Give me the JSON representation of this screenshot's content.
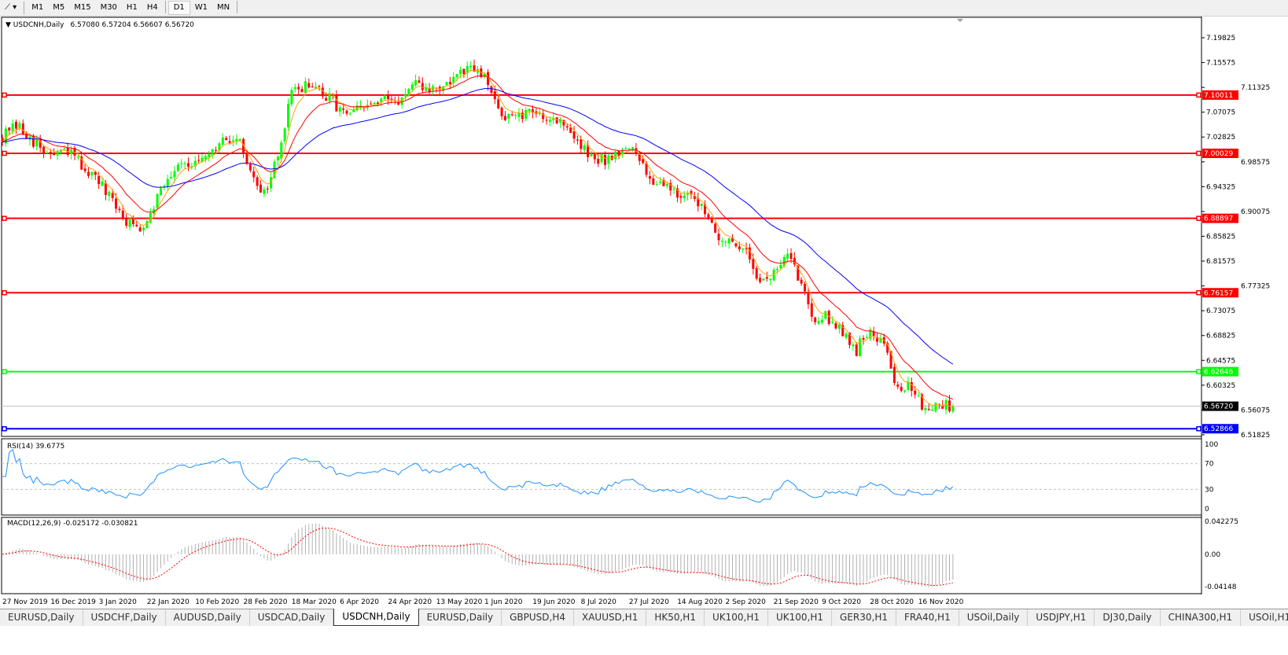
{
  "toolbar": {
    "tool_icon": "line-tool-icon",
    "timeframes": [
      "M1",
      "M5",
      "M15",
      "M30",
      "H1",
      "H4",
      "D1",
      "W1",
      "MN"
    ],
    "active_timeframe": "D1"
  },
  "chart_header": {
    "symbol": "USDCNH,Daily",
    "ohlc": "6.57080 6.57204 6.56607 6.56720"
  },
  "chart_data": {
    "type": "candlestick",
    "price_ticks": [
      "7.19825",
      "7.15575",
      "7.11325",
      "7.07075",
      "7.02825",
      "6.98575",
      "6.94325",
      "6.90075",
      "6.85825",
      "6.81575",
      "6.77325",
      "6.73075",
      "6.68825",
      "6.64575",
      "6.60325",
      "6.56075",
      "6.51825"
    ],
    "ylim": [
      6.51825,
      7.19825
    ],
    "date_ticks": [
      "27 Nov 2019",
      "16 Dec 2019",
      "3 Jan 2020",
      "22 Jan 2020",
      "10 Feb 2020",
      "28 Feb 2020",
      "18 Mar 2020",
      "6 Apr 2020",
      "24 Apr 2020",
      "13 May 2020",
      "1 Jun 2020",
      "19 Jun 2020",
      "8 Jul 2020",
      "27 Jul 2020",
      "14 Aug 2020",
      "2 Sep 2020",
      "21 Sep 2020",
      "9 Oct 2020",
      "28 Oct 2020",
      "16 Nov 2020"
    ],
    "approx_close_every_4_bars": [
      7.03,
      7.045,
      7.03,
      7.0,
      7.0,
      7.0,
      6.975,
      6.95,
      6.915,
      6.885,
      6.87,
      6.915,
      6.96,
      6.99,
      6.98,
      6.99,
      7.02,
      7.03,
      6.975,
      6.93,
      6.99,
      7.1,
      7.12,
      7.105,
      7.09,
      7.065,
      7.075,
      7.085,
      7.09,
      7.095,
      7.115,
      7.11,
      7.115,
      7.13,
      7.145,
      7.13,
      7.075,
      7.06,
      7.065,
      7.07,
      7.06,
      7.05,
      7.01,
      6.99,
      6.99,
      7.01,
      7.0,
      6.96,
      6.95,
      6.935,
      6.92,
      6.91,
      6.86,
      6.84,
      6.845,
      6.78,
      6.79,
      6.83,
      6.78,
      6.72,
      6.72,
      6.7,
      6.66,
      6.7,
      6.68,
      6.6,
      6.6,
      6.565,
      6.57,
      6.5672
    ],
    "current_price": "6.56720",
    "levels": [
      {
        "value": "7.10011",
        "color": "#ff0000"
      },
      {
        "value": "7.00029",
        "color": "#ff0000"
      },
      {
        "value": "6.88897",
        "color": "#ff0000"
      },
      {
        "value": "6.76157",
        "color": "#ff0000"
      },
      {
        "value": "6.62646",
        "color": "#00ff00"
      },
      {
        "value": "6.52866",
        "color": "#0000ff"
      }
    ],
    "moving_averages": [
      {
        "color": "#ffa500"
      },
      {
        "color": "#ff0000"
      },
      {
        "color": "#0000ff"
      }
    ],
    "bull_color": "#00ff00",
    "bear_color": "#ff0000"
  },
  "rsi": {
    "label": "RSI(14) 39.6775",
    "ticks": [
      "100",
      "70",
      "30",
      "0"
    ],
    "color": "#1e90ff"
  },
  "macd": {
    "label": "MACD(12,26,9) -0.025172 -0.030821",
    "ticks": [
      "0.042275",
      "0.00",
      "-0.04148"
    ],
    "ylim": [
      -0.04148,
      0.042275
    ]
  },
  "tabs": [
    "EURUSD,Daily",
    "USDCHF,Daily",
    "AUDUSD,Daily",
    "USDCAD,Daily",
    "USDCNH,Daily",
    "EURUSD,Daily",
    "GBPUSD,H4",
    "XAUUSD,H1",
    "HK50,H1",
    "UK100,H1",
    "UK100,H1",
    "GER30,H1",
    "FRA40,H1",
    "USOil,Daily",
    "USDJPY,H1",
    "DJ30,Daily",
    "CHINA300,H1",
    "USOil,H1"
  ],
  "active_tab": "USDCNH,Daily"
}
